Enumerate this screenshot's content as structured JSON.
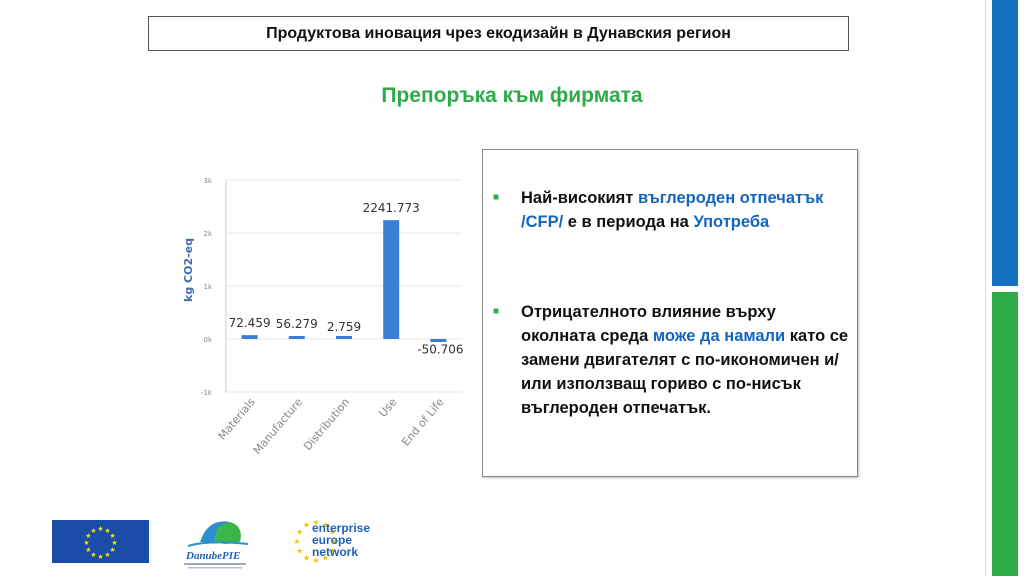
{
  "header": {
    "title": "Продуктова иновация чрез екодизайн в Дунавския регион"
  },
  "subtitle": "Препоръка към фирмата",
  "colors": {
    "accent_green": "#2eab47",
    "highlight_blue": "#1565c0",
    "bar_blue": "#3a7fd5"
  },
  "chart_data": {
    "type": "bar",
    "ylabel": "kg CO2-eq",
    "categories": [
      "Materials",
      "Manufacture",
      "Distribution",
      "Use",
      "End of Life"
    ],
    "values": [
      72.459,
      56.279,
      2.759,
      2241.773,
      -50.706
    ],
    "data_labels": [
      "72.459",
      "56.279",
      "2.759",
      "2241.773",
      "-50.706"
    ],
    "ylim": [
      -1000,
      3000
    ],
    "y_ticks": [
      -1000,
      0,
      1000,
      2000,
      3000
    ],
    "y_tick_labels": [
      "-1k",
      "0k",
      "1k",
      "2k",
      "3k"
    ],
    "grid": true
  },
  "bullets": [
    {
      "parts": [
        {
          "text": "Най-високият ",
          "hl": false
        },
        {
          "text": "въглероден отпечатък /CFP/",
          "hl": true
        },
        {
          "text": " е в периода на ",
          "hl": false
        },
        {
          "text": "Употреба",
          "hl": true
        }
      ]
    },
    {
      "parts": [
        {
          "text": "Отрицателното влияние върху околната среда ",
          "hl": false
        },
        {
          "text": "може да намали",
          "hl": true
        },
        {
          "text": " като се замени двигателят с по-икономичен и/или използващ гориво с по-нисък въглероден отпечатък.",
          "hl": false
        }
      ]
    }
  ],
  "logos": {
    "eu": "eu-flag-icon",
    "danube": {
      "name": "danube-pie-logo",
      "text": "DanubePIE"
    },
    "een": {
      "name": "een-logo",
      "lines": [
        "enterprise",
        "europe",
        "network"
      ]
    }
  }
}
